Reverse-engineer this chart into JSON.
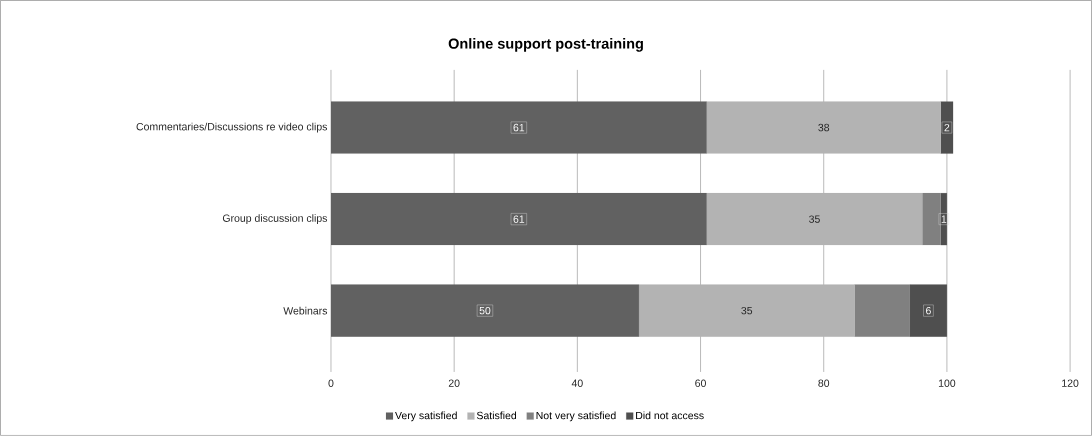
{
  "chart_data": {
    "type": "bar",
    "orientation": "horizontal",
    "stacked": true,
    "title": "Online support post-training",
    "categories": [
      "Commentaries/Discussions re video clips",
      "Group discussion clips",
      "Webinars"
    ],
    "series": [
      {
        "name": "Very satisfied",
        "color": "#616161",
        "values": [
          61,
          61,
          50
        ],
        "value_labels": [
          "61",
          "61",
          "50"
        ]
      },
      {
        "name": "Satisfied",
        "color": "#b3b3b3",
        "values": [
          38,
          35,
          35
        ],
        "value_labels": [
          "38",
          "35",
          "35"
        ]
      },
      {
        "name": "Not very satisfied",
        "color": "#808080",
        "values": [
          0,
          3,
          9
        ],
        "value_labels": [
          null,
          null,
          null
        ]
      },
      {
        "name": "Did not access",
        "color": "#4f4f4f",
        "values": [
          2,
          1,
          6
        ],
        "value_labels": [
          "2",
          "1",
          "6"
        ]
      }
    ],
    "xlim": [
      0,
      120
    ],
    "xticks": [
      0,
      20,
      40,
      60,
      80,
      100,
      120
    ],
    "grid": "x",
    "legend": "bottom"
  }
}
